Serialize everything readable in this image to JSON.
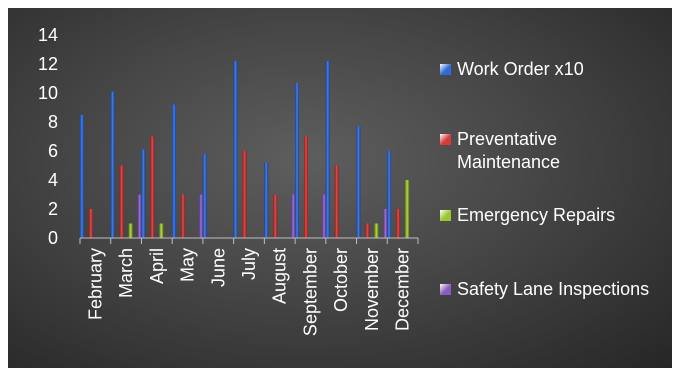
{
  "chart_data": {
    "type": "bar",
    "title": "",
    "xlabel": "",
    "ylabel": "",
    "ylim": [
      0,
      14
    ],
    "yticks": [
      "0",
      "2",
      "4",
      "6",
      "8",
      "10",
      "12",
      "14"
    ],
    "grid": false,
    "legend_position": "right",
    "categories": [
      "February",
      "March",
      "April",
      "May",
      "June",
      "July",
      "August",
      "September",
      "October",
      "November",
      "December"
    ],
    "series": [
      {
        "name": "Work Order x10",
        "color": "#2f6bd8",
        "values": [
          8.5,
          10.1,
          6.1,
          9.2,
          5.8,
          12.2,
          5.2,
          10.7,
          12.2,
          7.7,
          6.0
        ]
      },
      {
        "name": "Preventative Maintenance",
        "color": "#d83a3a",
        "values": [
          2,
          5,
          7,
          3,
          0,
          6,
          3,
          7,
          5,
          1,
          2
        ]
      },
      {
        "name": "Emergency Repairs",
        "color": "#9cc62e",
        "values": [
          0,
          1,
          1,
          0,
          0,
          0,
          0,
          0,
          0,
          1,
          4
        ]
      },
      {
        "name": "Safety Lane Inspections",
        "color": "#8a5cc0",
        "values": [
          0,
          3,
          0,
          3,
          0,
          0,
          3,
          3,
          0,
          2,
          0
        ]
      }
    ]
  }
}
